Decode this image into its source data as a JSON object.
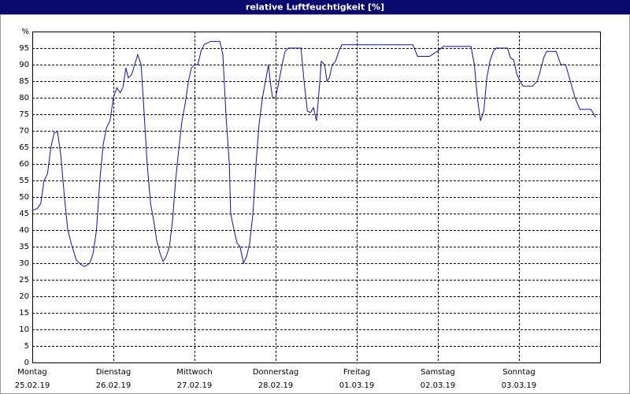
{
  "chart_data": {
    "type": "line",
    "title": "relative Luftfeuchtigkeit [%]",
    "x": [
      0,
      1.5,
      2.5,
      3.5,
      4.5,
      5.5,
      6.5,
      7.5,
      8.5,
      9.5,
      10.5,
      11.5,
      13,
      14.5,
      15.5,
      17,
      18,
      19,
      20,
      21,
      22,
      23,
      24,
      25,
      26,
      26.8,
      27.7,
      28.4,
      29.4,
      30.3,
      31.2,
      32.2,
      33.1,
      34,
      35,
      35.9,
      36.8,
      37.8,
      38.7,
      39.6,
      40.6,
      41.5,
      42.4,
      43.4,
      44.3,
      45.2,
      46.2,
      47.1,
      48,
      49,
      49.9,
      50.8,
      51.7,
      52.7,
      55.5,
      56.4,
      57.3,
      58.3,
      58.7,
      59.7,
      60.6,
      61.5,
      62.5,
      63.4,
      64.3,
      65.3,
      66.2,
      67.1,
      68.1,
      69,
      69.9,
      70.4,
      71.1,
      72,
      73,
      73.9,
      74.8,
      75.8,
      79.5,
      80.4,
      81.4,
      82.3,
      83.2,
      84.1,
      85.1,
      85.5,
      86.5,
      87.2,
      87.9,
      88.8,
      89.7,
      90.7,
      91.6,
      95.8,
      112.6,
      114,
      117.5,
      119.8,
      121.7,
      129.8,
      130.8,
      131.7,
      132.6,
      133.6,
      134.5,
      135.4,
      136.4,
      137.3,
      140.6,
      141.5,
      142.4,
      143.4,
      144.3,
      145.2,
      148,
      149.4,
      150.3,
      151.3,
      152.2,
      155,
      156.4,
      157.8,
      159.2,
      160.6,
      162,
      165.3,
      166.7
    ],
    "series": [
      {
        "color": "#1010a0",
        "values": [
          46,
          46.5,
          48,
          55,
          57,
          65,
          69.5,
          69.5,
          62,
          50,
          40,
          36,
          31,
          29.5,
          29,
          30,
          33,
          40,
          55,
          66,
          71,
          73,
          80,
          83,
          81.5,
          83,
          89,
          86,
          87,
          90,
          93,
          90,
          75,
          60,
          48,
          43,
          37,
          33,
          30.5,
          32,
          35,
          43,
          55,
          65,
          73,
          78,
          85,
          89,
          90,
          90,
          94,
          96,
          96.5,
          97,
          97,
          93,
          75,
          60,
          45,
          40,
          36,
          35,
          30,
          32,
          36,
          45,
          60,
          72,
          80,
          85,
          90,
          85,
          80,
          80,
          85,
          90,
          94,
          95,
          95,
          85,
          76,
          75.5,
          77,
          73,
          85,
          91,
          90,
          85,
          86,
          90,
          91,
          94,
          96,
          96,
          96,
          92.5,
          92.5,
          94,
          95.5,
          95.5,
          90,
          80,
          73,
          76,
          86,
          91,
          94,
          95,
          95,
          92,
          91.5,
          87,
          85,
          83.5,
          83.5,
          85,
          88,
          92,
          94,
          94,
          90,
          90,
          85,
          80,
          76.5,
          76.5,
          74
        ]
      }
    ],
    "xlim": [
      0,
      168
    ],
    "xticks": [
      {
        "value": 0,
        "label": "Montag"
      },
      {
        "value": 24,
        "label": "Dienstag"
      },
      {
        "value": 48,
        "label": "Mittwoch"
      },
      {
        "value": 72,
        "label": "Donnerstag"
      },
      {
        "value": 96,
        "label": "Freitag"
      },
      {
        "value": 120,
        "label": "Samstag"
      },
      {
        "value": 144,
        "label": "Sonntag"
      }
    ],
    "xtick_dates": [
      "25.02.19",
      "26.02.19",
      "27.02.19",
      "28.02.19",
      "01.03.19",
      "02.03.19",
      "03.03.19"
    ],
    "ylim": [
      0,
      100
    ],
    "yticks": [
      0,
      5,
      10,
      15,
      20,
      25,
      30,
      35,
      40,
      45,
      50,
      55,
      60,
      65,
      70,
      75,
      80,
      85,
      90,
      95,
      {
        "value": 100,
        "label": "%"
      }
    ],
    "grid": true
  }
}
